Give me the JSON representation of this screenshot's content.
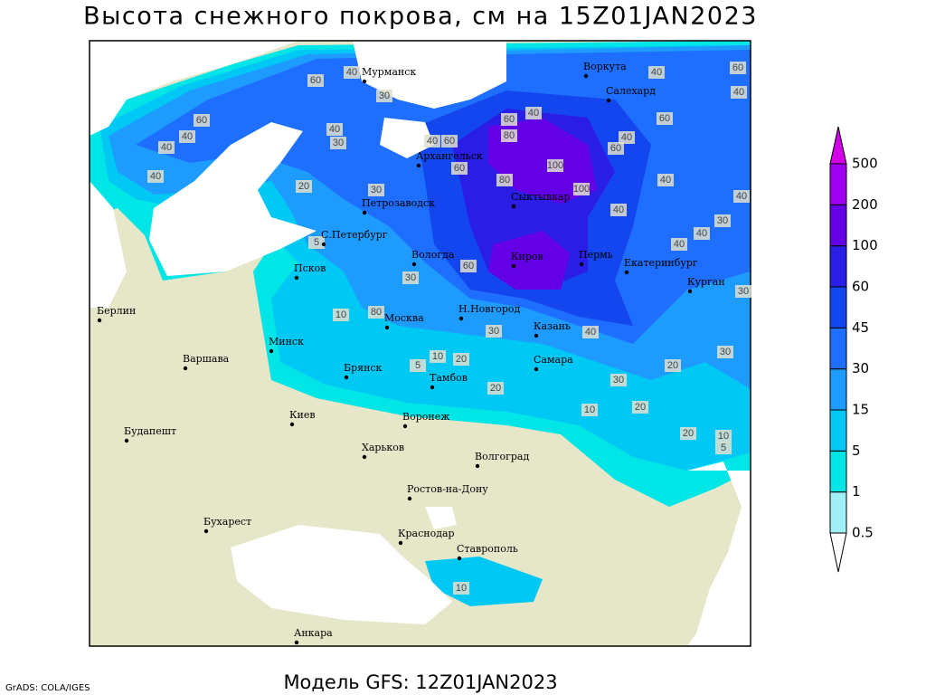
{
  "header": {
    "title": "Высота снежного покрова, см на 15Z01JAN2023"
  },
  "footer": {
    "model": "Модель GFS: 12Z01JAN2023",
    "credit": "GrADS: COLA/IGES"
  },
  "legend": {
    "levels": [
      0.5,
      1,
      5,
      15,
      30,
      45,
      60,
      100,
      200,
      500
    ],
    "colors": [
      "#ffffff",
      "#a0f0f5",
      "#00e6e6",
      "#00c8f5",
      "#1e9bff",
      "#1e6eff",
      "#1446f0",
      "#2a1ee6",
      "#6400e6",
      "#a000f0",
      "#d200e6"
    ]
  },
  "cities": [
    "Мурманск",
    "Воркута",
    "Салехард",
    "Архангельск",
    "Сыктывкар",
    "Петрозаводск",
    "С.Петербург",
    "Вологда",
    "Киров",
    "Пермь",
    "Екатеринбург",
    "Курган",
    "Псков",
    "Берлин",
    "Москва",
    "Н.Новгород",
    "Казань",
    "Минск",
    "Варшава",
    "Брянск",
    "Тамбов",
    "Самара",
    "Киев",
    "Воронеж",
    "Будапешт",
    "Харьков",
    "Волгоград",
    "Ростов-на-Дону",
    "Бухарест",
    "Краснодар",
    "Ставрополь",
    "Анкара"
  ],
  "contour_labels": [
    60,
    40,
    30,
    40,
    40,
    60,
    40,
    40,
    30,
    20,
    30,
    40,
    60,
    60,
    60,
    40,
    80,
    100,
    80,
    100,
    60,
    40,
    60,
    40,
    60,
    40,
    40,
    40,
    40,
    30,
    40,
    40,
    30,
    10,
    80,
    60,
    30,
    40,
    30,
    30,
    20,
    30,
    10,
    20,
    5,
    20,
    10,
    20,
    20,
    10,
    5,
    5,
    10
  ]
}
